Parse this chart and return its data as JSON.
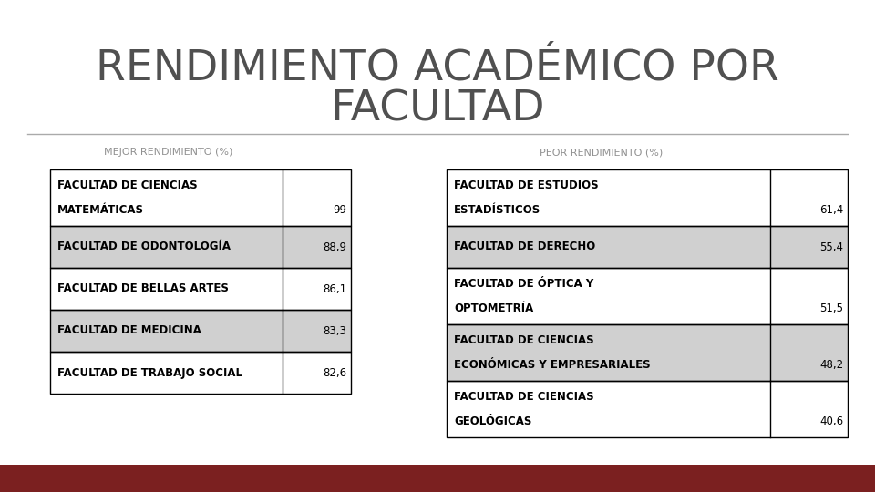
{
  "title_line1": "RENDIMIENTO ACADÉMICO POR",
  "title_line2": "FACULTAD",
  "left_header": "MEJOR RENDIMIENTO (%)",
  "right_header": "PEOR RENDIMIENTO (%)",
  "left_rows": [
    {
      "label_line1": "FACULTAD DE CIENCIAS",
      "label_line2": "MATEMÁTICAS",
      "value": "99",
      "tall": true
    },
    {
      "label_line1": "FACULTAD DE ODONTOLOGÍA",
      "label_line2": "",
      "value": "88,9",
      "tall": false
    },
    {
      "label_line1": "FACULTAD DE BELLAS ARTES",
      "label_line2": "",
      "value": "86,1",
      "tall": false
    },
    {
      "label_line1": "FACULTAD DE MEDICINA",
      "label_line2": "",
      "value": "83,3",
      "tall": false
    },
    {
      "label_line1": "FACULTAD DE TRABAJO SOCIAL",
      "label_line2": "",
      "value": "82,6",
      "tall": false
    }
  ],
  "right_rows": [
    {
      "label_line1": "FACULTAD DE ESTUDIOS",
      "label_line2": "ESTADÍSTICOS",
      "value": "61,4",
      "tall": true
    },
    {
      "label_line1": "FACULTAD DE DERECHO",
      "label_line2": "",
      "value": "55,4",
      "tall": false
    },
    {
      "label_line1": "FACULTAD DE ÓPTICA Y",
      "label_line2": "OPTOMETRÍA",
      "value": "51,5",
      "tall": true
    },
    {
      "label_line1": "FACULTAD DE CIENCIAS",
      "label_line2": "ECONÓMICAS Y EMPRESARIALES",
      "value": "48,2",
      "tall": true
    },
    {
      "label_line1": "FACULTAD DE CIENCIAS",
      "label_line2": "GEOLÓGICAS",
      "value": "40,6",
      "tall": true
    }
  ],
  "bg_color": "#ffffff",
  "title_color": "#505050",
  "header_color": "#909090",
  "table_text_color": "#000000",
  "row_colors": [
    "#ffffff",
    "#d0d0d0"
  ],
  "border_color": "#000000",
  "bottom_bar_color": "#7b2020",
  "separator_color": "#aaaaaa",
  "title_fontsize": 34,
  "header_fontsize": 8,
  "table_fontsize": 8.5
}
